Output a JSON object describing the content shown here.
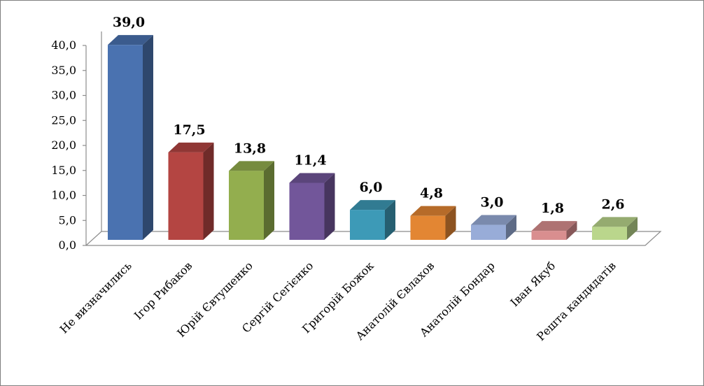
{
  "chart_data": {
    "type": "bar",
    "title": "",
    "xlabel": "",
    "ylabel": "",
    "categories": [
      "Не визначились",
      "Ігор Рибаков",
      "Юрій Євтушенко",
      "Сергій Сегієнко",
      "Григорій Божок",
      "Анатолій Євлахов",
      "Анатолій Бондар",
      "Іван Якуб",
      "Решта кандидатів"
    ],
    "values": [
      39.0,
      17.5,
      13.8,
      11.4,
      6.0,
      4.8,
      3.0,
      1.8,
      2.6
    ],
    "value_labels": [
      "39,0",
      "17,5",
      "13,8",
      "11,4",
      "6,0",
      "4,8",
      "3,0",
      "1,8",
      "2,6"
    ],
    "yticks": [
      "0,0",
      "5,0",
      "10,0",
      "15,0",
      "20,0",
      "25,0",
      "30,0",
      "35,0",
      "40,0"
    ],
    "ylim": [
      0,
      40
    ],
    "grid": false,
    "legend": "none",
    "colors": [
      "#4a72b0",
      "#b44542",
      "#93ae4e",
      "#72569a",
      "#3d9ab7",
      "#e38633",
      "#98acd8",
      "#d98e8f",
      "#bad68c"
    ]
  }
}
